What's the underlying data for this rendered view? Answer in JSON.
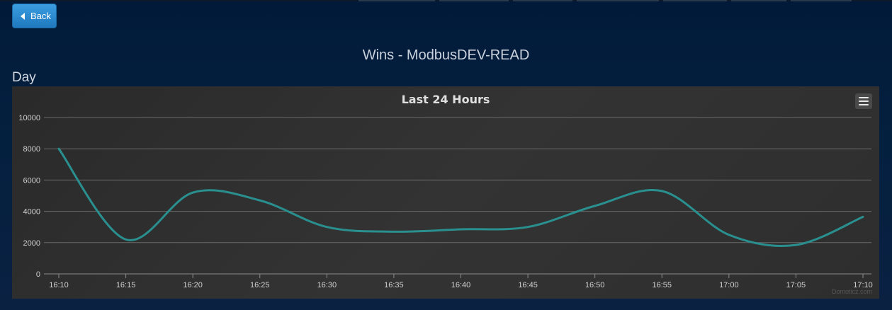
{
  "header": {
    "back_label": "Back",
    "title": "Wins - ModbusDEV-READ"
  },
  "section": {
    "label": "Day"
  },
  "chart_menu_icon": "hamburger-menu-icon",
  "colors": {
    "line": "#2a8f8f",
    "button": "#2a8ad0",
    "background": "#021a3a"
  },
  "chart_data": {
    "type": "line",
    "title": "Last 24 Hours",
    "xlabel": "",
    "ylabel": "",
    "credit": "Domoticz.com",
    "x_ticks": [
      "16:10",
      "16:15",
      "16:20",
      "16:25",
      "16:30",
      "16:35",
      "16:40",
      "16:45",
      "16:50",
      "16:55",
      "17:00",
      "17:05",
      "17:10"
    ],
    "y_ticks": [
      0,
      2000,
      4000,
      6000,
      8000,
      10000
    ],
    "ylim": [
      0,
      10000
    ],
    "grid": true,
    "series": [
      {
        "values": [
          8000,
          2200,
          5200,
          4700,
          3000,
          2700,
          2850,
          3000,
          4350,
          5300,
          2500,
          1850,
          3650
        ]
      }
    ]
  }
}
